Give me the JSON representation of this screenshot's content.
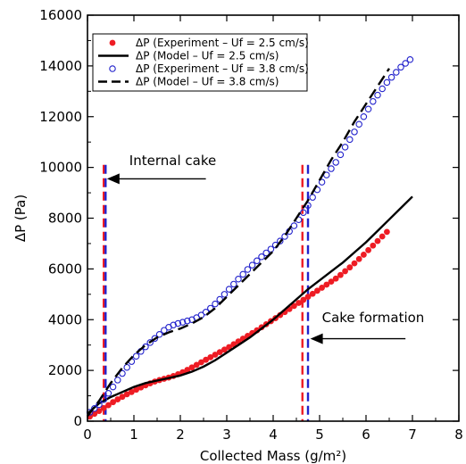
{
  "chart_data": {
    "type": "scatter",
    "xlabel": "Collected Mass (g/m²)",
    "ylabel": "ΔP (Pa)",
    "xlim": [
      0,
      8
    ],
    "ylim": [
      0,
      16000
    ],
    "xticks": [
      0,
      1,
      2,
      3,
      4,
      5,
      6,
      7,
      8
    ],
    "yticks": [
      0,
      2000,
      4000,
      6000,
      8000,
      10000,
      12000,
      14000,
      16000
    ],
    "grid": false,
    "legend_position": "top-left",
    "series": [
      {
        "name": "ΔP (Experiment – Uf = 2.5 cm/s)",
        "kind": "markers-filled",
        "color": "#ee1c24",
        "x": [
          0.05,
          0.15,
          0.25,
          0.35,
          0.45,
          0.55,
          0.65,
          0.75,
          0.85,
          0.95,
          1.05,
          1.15,
          1.25,
          1.35,
          1.45,
          1.55,
          1.65,
          1.75,
          1.85,
          1.95,
          2.05,
          2.15,
          2.25,
          2.35,
          2.45,
          2.55,
          2.65,
          2.75,
          2.85,
          2.95,
          3.05,
          3.15,
          3.25,
          3.35,
          3.45,
          3.55,
          3.65,
          3.75,
          3.85,
          3.95,
          4.05,
          4.15,
          4.25,
          4.35,
          4.45,
          4.55,
          4.65,
          4.75,
          4.85,
          4.95,
          5.05,
          5.15,
          5.25,
          5.35,
          5.45,
          5.55,
          5.65,
          5.75,
          5.85,
          5.95,
          6.05,
          6.15,
          6.25,
          6.35,
          6.45
        ],
        "y": [
          180,
          290,
          400,
          520,
          630,
          750,
          860,
          960,
          1060,
          1150,
          1240,
          1330,
          1410,
          1490,
          1560,
          1620,
          1670,
          1720,
          1780,
          1850,
          1930,
          2020,
          2120,
          2220,
          2320,
          2420,
          2520,
          2620,
          2720,
          2820,
          2920,
          3030,
          3140,
          3250,
          3360,
          3470,
          3580,
          3700,
          3820,
          3940,
          4060,
          4180,
          4300,
          4420,
          4540,
          4660,
          4780,
          4900,
          5020,
          5140,
          5260,
          5380,
          5500,
          5620,
          5760,
          5910,
          6060,
          6220,
          6390,
          6560,
          6740,
          6920,
          7100,
          7280,
          7460
        ]
      },
      {
        "name": "ΔP (Model – Uf = 2.5 cm/s)",
        "kind": "line-solid",
        "color": "#000000",
        "x": [
          0,
          0.25,
          0.5,
          0.75,
          1.0,
          1.25,
          1.5,
          1.75,
          2.0,
          2.25,
          2.5,
          2.75,
          3.0,
          3.25,
          3.5,
          3.75,
          4.0,
          4.25,
          4.5,
          4.75,
          5.0,
          5.25,
          5.5,
          5.75,
          6.0,
          6.25,
          6.5,
          6.75,
          7.0
        ],
        "y": [
          300,
          700,
          950,
          1150,
          1350,
          1500,
          1600,
          1700,
          1800,
          1950,
          2150,
          2400,
          2700,
          3000,
          3300,
          3650,
          4000,
          4400,
          4800,
          5200,
          5550,
          5900,
          6250,
          6650,
          7050,
          7500,
          7950,
          8400,
          8850
        ]
      },
      {
        "name": "ΔP (Experiment – Uf = 3.8 cm/s)",
        "kind": "markers-open",
        "color": "#2222cc",
        "x": [
          0.05,
          0.15,
          0.25,
          0.35,
          0.45,
          0.55,
          0.65,
          0.75,
          0.85,
          0.95,
          1.05,
          1.15,
          1.25,
          1.35,
          1.45,
          1.55,
          1.65,
          1.75,
          1.85,
          1.95,
          2.05,
          2.15,
          2.25,
          2.35,
          2.45,
          2.55,
          2.65,
          2.75,
          2.85,
          2.95,
          3.05,
          3.15,
          3.25,
          3.35,
          3.45,
          3.55,
          3.65,
          3.75,
          3.85,
          3.95,
          4.05,
          4.15,
          4.25,
          4.35,
          4.45,
          4.55,
          4.65,
          4.75,
          4.85,
          4.95,
          5.05,
          5.15,
          5.25,
          5.35,
          5.45,
          5.55,
          5.65,
          5.75,
          5.85,
          5.95,
          6.05,
          6.15,
          6.25,
          6.35,
          6.45,
          6.55,
          6.65,
          6.75,
          6.85,
          6.95
        ],
        "y": [
          350,
          500,
          650,
          850,
          1100,
          1350,
          1620,
          1880,
          2120,
          2350,
          2560,
          2750,
          2930,
          3100,
          3260,
          3420,
          3580,
          3700,
          3790,
          3850,
          3900,
          3950,
          4000,
          4080,
          4180,
          4300,
          4450,
          4620,
          4800,
          5000,
          5200,
          5400,
          5600,
          5790,
          5980,
          6150,
          6320,
          6480,
          6630,
          6780,
          6940,
          7100,
          7280,
          7480,
          7700,
          7940,
          8220,
          8500,
          8820,
          9120,
          9420,
          9700,
          9950,
          10200,
          10500,
          10800,
          11100,
          11400,
          11700,
          12000,
          12300,
          12600,
          12850,
          13100,
          13350,
          13550,
          13750,
          13950,
          14100,
          14250
        ]
      },
      {
        "name": "ΔP (Model – Uf = 3.8 cm/s)",
        "kind": "line-dashed",
        "color": "#000000",
        "x": [
          0,
          0.25,
          0.5,
          0.75,
          1.0,
          1.25,
          1.5,
          1.75,
          2.0,
          2.25,
          2.5,
          2.75,
          3.0,
          3.25,
          3.5,
          3.75,
          4.0,
          4.25,
          4.5,
          4.75,
          5.0,
          5.25,
          5.5,
          5.75,
          6.0,
          6.25,
          6.5
        ],
        "y": [
          200,
          800,
          1500,
          2100,
          2600,
          3000,
          3300,
          3500,
          3650,
          3850,
          4100,
          4450,
          4900,
          5350,
          5800,
          6250,
          6700,
          7300,
          8000,
          8700,
          9500,
          10300,
          11000,
          11800,
          12500,
          13200,
          13900
        ]
      }
    ],
    "vlines": [
      {
        "x": 0.35,
        "color": "#ee1c24"
      },
      {
        "x": 0.39,
        "color": "#2222cc"
      },
      {
        "x": 4.63,
        "color": "#ee1c24"
      },
      {
        "x": 4.75,
        "color": "#2222cc"
      }
    ],
    "annotations": [
      {
        "text": "Internal cake",
        "x": 0.9,
        "y": 10100,
        "arrow_from": [
          2.55,
          9550
        ],
        "arrow_to": [
          0.42,
          9550
        ]
      },
      {
        "text": "Cake formation",
        "x": 5.05,
        "y": 3900,
        "arrow_from": [
          6.85,
          3250
        ],
        "arrow_to": [
          4.8,
          3250
        ]
      }
    ]
  }
}
